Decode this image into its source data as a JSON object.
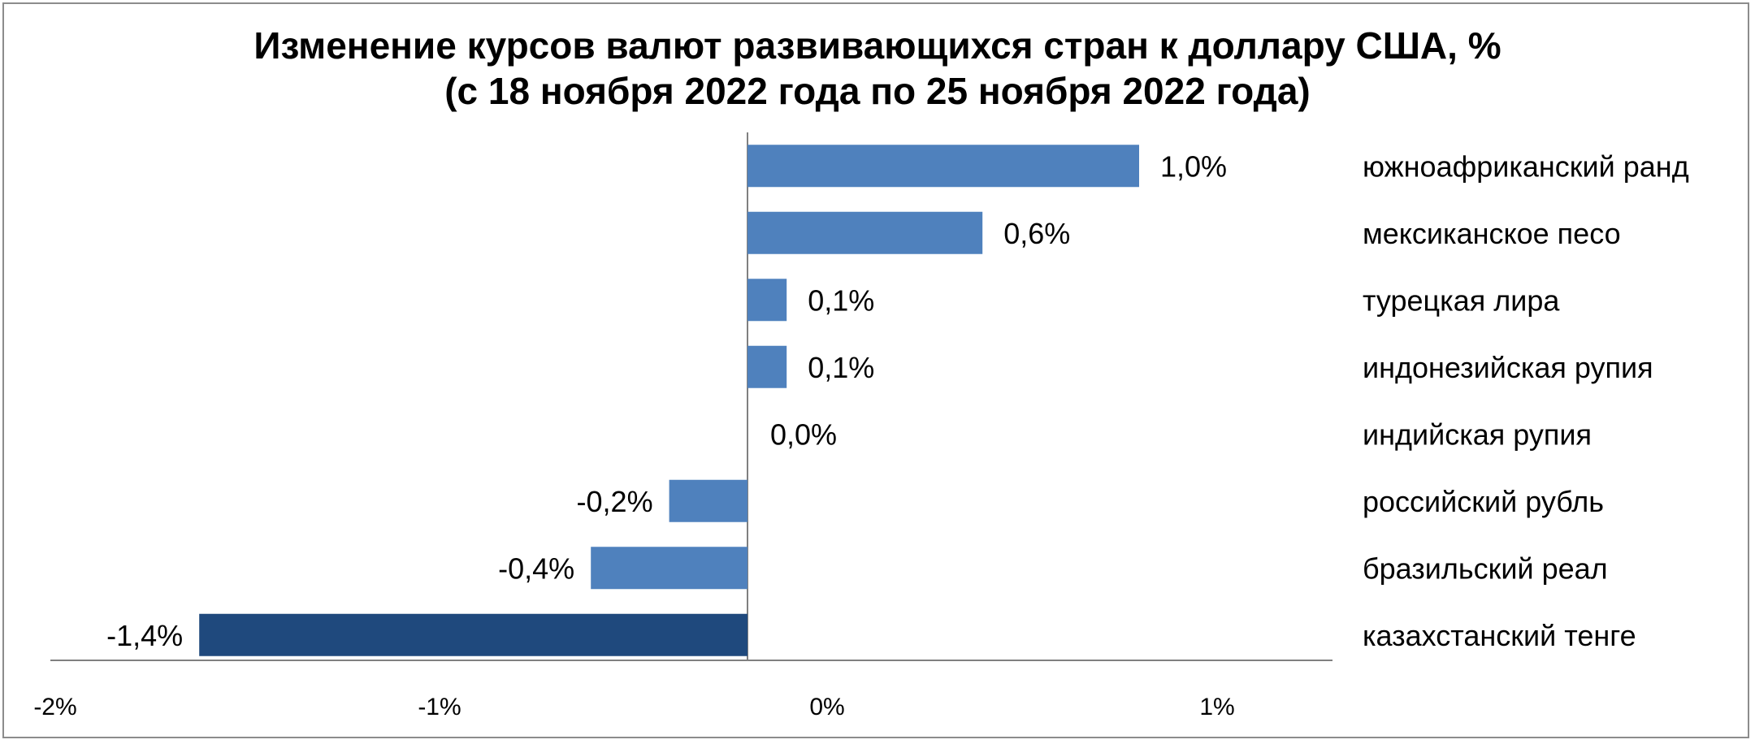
{
  "chart_data": {
    "type": "bar",
    "orientation": "horizontal",
    "title": "Изменение курсов валют развивающихся стран к доллару США, %",
    "subtitle": "(с 18 ноября 2022 года по 25 ноября 2022 года)",
    "categories": [
      "южноафриканский ранд",
      "мексиканское песо",
      "турецкая лира",
      "индонезийская рупия",
      "индийская рупия",
      "российский рубль",
      "бразильский реал",
      "казахстанский тенге"
    ],
    "values": [
      1.0,
      0.6,
      0.1,
      0.1,
      0.0,
      -0.2,
      -0.4,
      -1.4
    ],
    "value_labels": [
      "1,0%",
      "0,6%",
      "0,1%",
      "0,1%",
      "0,0%",
      "-0,2%",
      "-0,4%",
      "-1,4%"
    ],
    "x_ticks": [
      "-2%",
      "-1%",
      "0%",
      "1%"
    ],
    "xlim": [
      -2,
      1.5
    ],
    "grid": false,
    "legend": "none",
    "colors": {
      "bar": "#4f81bd",
      "bar_highlight": "#1f497d",
      "axis": "#808080"
    },
    "highlight_category": "казахстанский тенге"
  }
}
